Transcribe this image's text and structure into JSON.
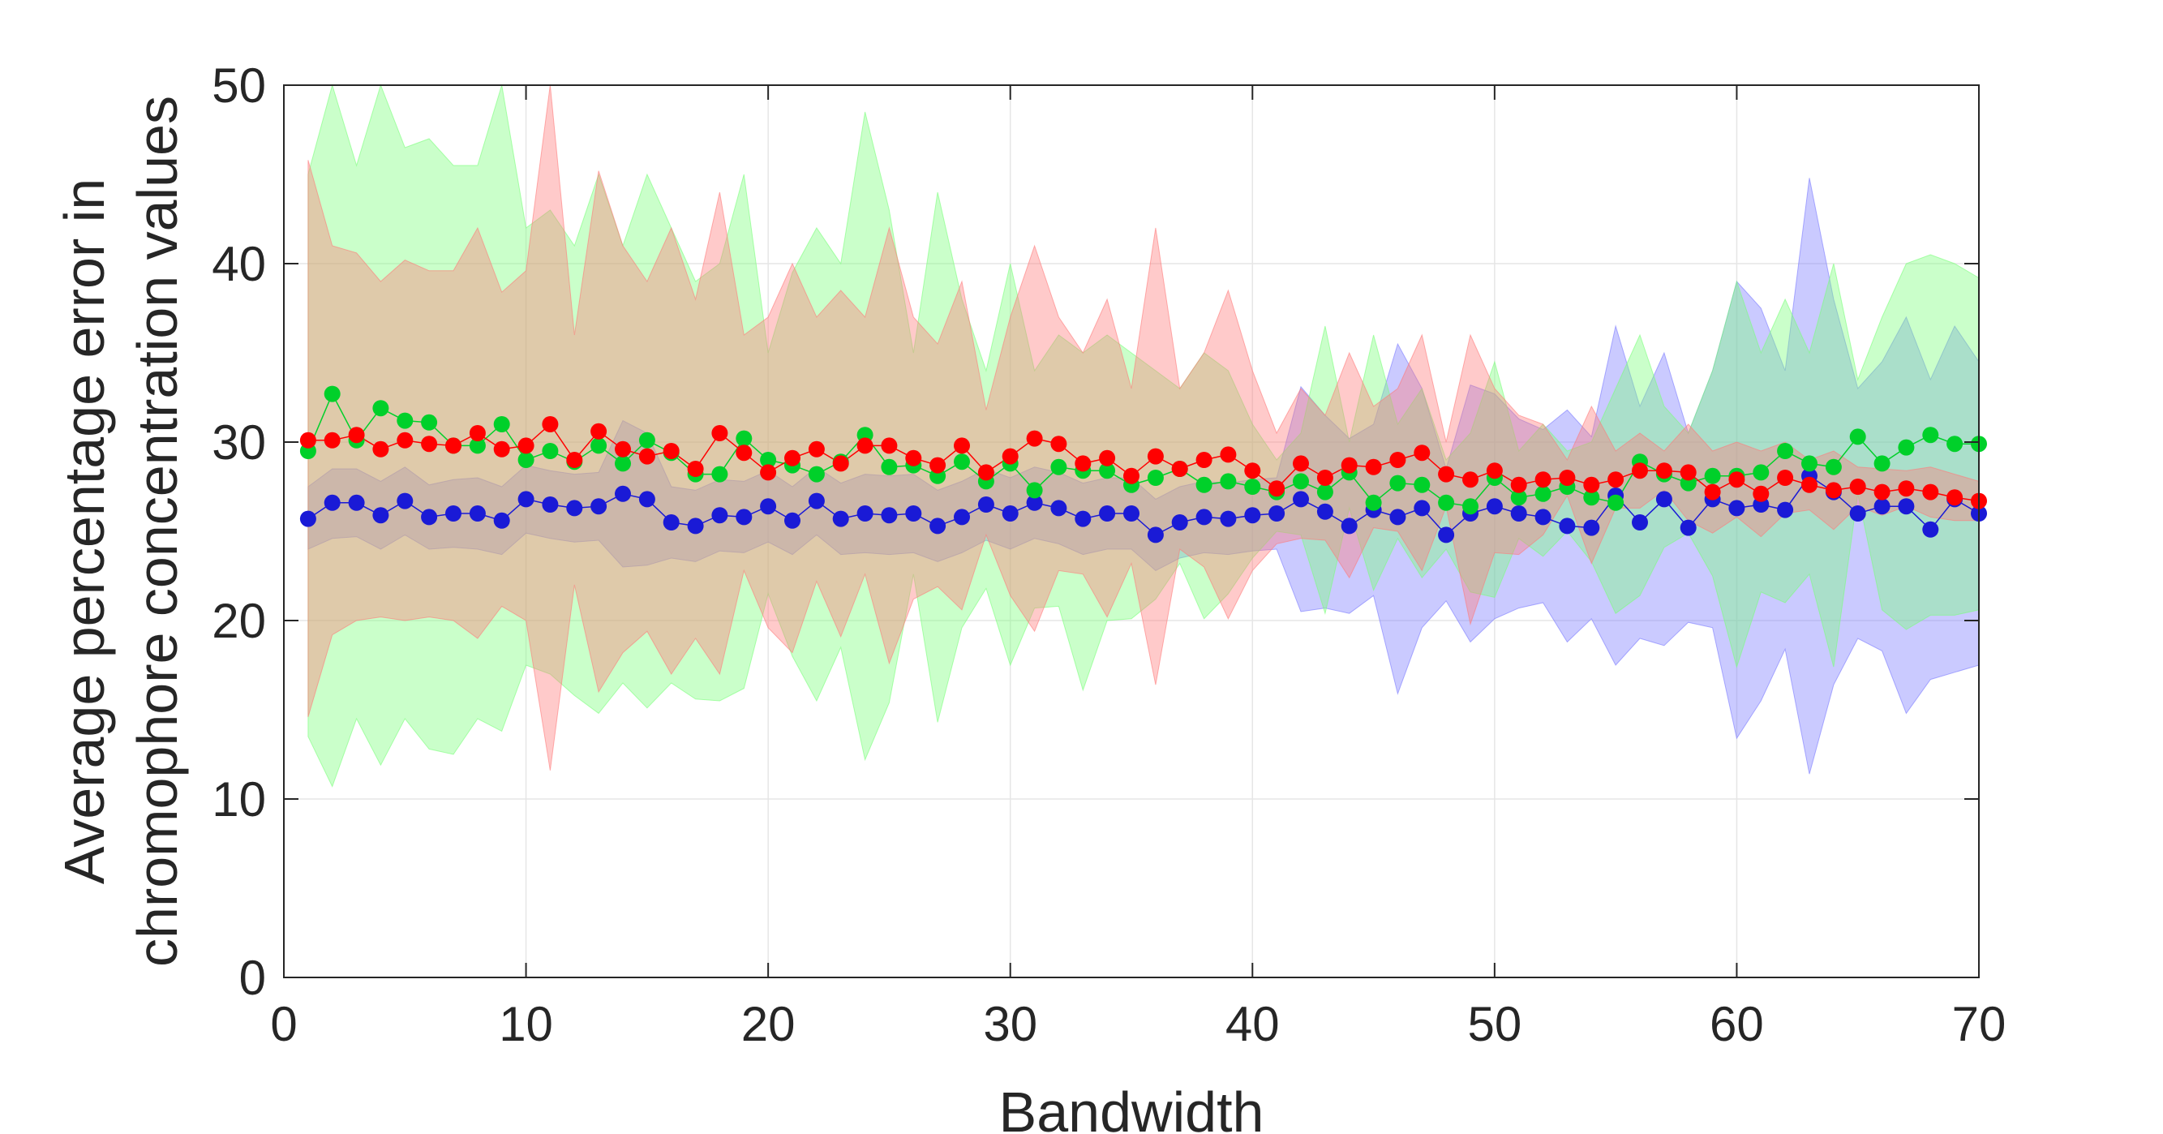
{
  "chart_data": {
    "type": "line",
    "title": "",
    "xlabel": "Bandwidth",
    "ylabel_lines": [
      "Average percentage error in",
      "chromophore concentration values"
    ],
    "xlim": [
      0,
      70
    ],
    "ylim": [
      0,
      50
    ],
    "xticks": [
      0,
      10,
      20,
      30,
      40,
      50,
      60,
      70
    ],
    "yticks": [
      0,
      10,
      20,
      30,
      40,
      50
    ],
    "xtick_labels": [
      "0",
      "10",
      "20",
      "30",
      "40",
      "50",
      "60",
      "70"
    ],
    "ytick_labels": [
      "0",
      "10",
      "20",
      "30",
      "40",
      "50"
    ],
    "grid": true,
    "legend": "none",
    "x": [
      1,
      2,
      3,
      4,
      5,
      6,
      7,
      8,
      9,
      10,
      11,
      12,
      13,
      14,
      15,
      16,
      17,
      18,
      19,
      20,
      21,
      22,
      23,
      24,
      25,
      26,
      27,
      28,
      29,
      30,
      31,
      32,
      33,
      34,
      35,
      36,
      37,
      38,
      39,
      40,
      41,
      42,
      43,
      44,
      45,
      46,
      47,
      48,
      49,
      50,
      51,
      52,
      53,
      54,
      55,
      56,
      57,
      58,
      59,
      60,
      61,
      62,
      63,
      64,
      65,
      66,
      67,
      68,
      69,
      70
    ],
    "series": [
      {
        "color": "#1a1ad6",
        "band_color": "#7a7aff",
        "values": [
          25.7,
          26.6,
          26.6,
          25.9,
          26.7,
          25.8,
          26.0,
          26.0,
          25.6,
          26.8,
          26.5,
          26.3,
          26.4,
          27.1,
          26.8,
          25.5,
          25.3,
          25.9,
          25.8,
          26.4,
          25.6,
          26.7,
          25.7,
          26.0,
          25.9,
          26.0,
          25.3,
          25.8,
          26.5,
          26.0,
          26.6,
          26.3,
          25.7,
          26.0,
          26.0,
          24.8,
          25.5,
          25.8,
          25.7,
          25.9,
          26.0,
          26.8,
          26.1,
          25.3,
          26.2,
          25.8,
          26.3,
          24.8,
          26.0,
          26.4,
          26.0,
          25.8,
          25.3,
          25.2,
          27.0,
          25.5,
          26.8,
          25.2,
          26.8,
          26.3,
          26.5,
          26.2,
          28.1,
          27.2,
          26.0,
          26.4,
          26.4,
          25.1,
          26.8,
          26.0
        ],
        "upper": [
          27.5,
          28.5,
          28.5,
          27.8,
          28.6,
          27.6,
          27.9,
          28.0,
          27.5,
          28.7,
          28.4,
          28.2,
          28.3,
          31.2,
          30.5,
          27.5,
          27.3,
          27.9,
          27.8,
          28.4,
          27.5,
          28.6,
          27.7,
          28.2,
          28.1,
          28.2,
          27.3,
          27.8,
          28.5,
          28.0,
          28.6,
          28.3,
          27.7,
          28.0,
          28.0,
          26.8,
          27.5,
          27.8,
          27.7,
          27.9,
          28.0,
          33.1,
          31.5,
          30.2,
          31.0,
          35.5,
          33.0,
          28.5,
          33.2,
          32.7,
          31.3,
          30.7,
          31.8,
          30.3,
          36.5,
          32.0,
          35.0,
          30.5,
          34.0,
          39.0,
          37.5,
          34.0,
          44.8,
          38.0,
          33.0,
          34.5,
          37.0,
          33.5,
          36.5,
          34.5
        ],
        "lower": [
          24.0,
          24.6,
          24.7,
          24.0,
          24.8,
          24.0,
          24.1,
          24.0,
          23.7,
          24.9,
          24.6,
          24.4,
          24.5,
          23.0,
          23.1,
          23.5,
          23.3,
          23.9,
          23.8,
          24.4,
          23.7,
          24.8,
          23.7,
          23.8,
          23.7,
          23.8,
          23.3,
          23.8,
          24.5,
          24.0,
          24.6,
          24.3,
          23.7,
          24.0,
          24.0,
          22.8,
          23.5,
          23.8,
          23.7,
          23.9,
          24.0,
          20.5,
          20.7,
          20.4,
          21.4,
          15.9,
          19.6,
          21.1,
          18.8,
          20.1,
          20.7,
          21.0,
          18.8,
          20.1,
          17.5,
          19.0,
          18.6,
          19.9,
          19.6,
          13.4,
          15.5,
          18.4,
          11.4,
          16.4,
          19.0,
          18.3,
          14.8,
          16.7,
          17.1,
          17.5
        ]
      },
      {
        "color": "#00d02a",
        "band_color": "#7aff7a",
        "values": [
          29.5,
          32.7,
          30.1,
          31.9,
          31.2,
          31.1,
          29.8,
          29.8,
          31.0,
          29.0,
          29.5,
          28.9,
          29.8,
          28.8,
          30.1,
          29.4,
          28.2,
          28.2,
          30.2,
          29.0,
          28.7,
          28.2,
          28.9,
          30.4,
          28.6,
          28.7,
          28.1,
          28.9,
          27.8,
          28.8,
          27.3,
          28.6,
          28.4,
          28.4,
          27.6,
          28.0,
          28.5,
          27.6,
          27.8,
          27.5,
          27.2,
          27.8,
          27.2,
          28.3,
          26.6,
          27.7,
          27.6,
          26.6,
          26.4,
          28.0,
          26.9,
          27.1,
          27.5,
          26.9,
          26.6,
          28.9,
          28.2,
          27.7,
          28.1,
          28.1,
          28.3,
          29.5,
          28.8,
          28.6,
          30.3,
          28.8,
          29.7,
          30.4,
          29.9,
          29.9
        ],
        "upper": [
          45.0,
          54.5,
          45.5,
          54.0,
          46.5,
          47.0,
          45.5,
          45.5,
          50.0,
          42.0,
          43.0,
          41.0,
          45.0,
          41.0,
          45.0,
          42.0,
          39.0,
          40.0,
          45.0,
          35.0,
          39.5,
          42.0,
          40.0,
          48.5,
          43.0,
          35.0,
          44.0,
          38.0,
          34.0,
          40.0,
          34.0,
          36.0,
          35.0,
          36.0,
          35.0,
          34.0,
          33.0,
          35.0,
          34.0,
          31.0,
          29.0,
          30.5,
          36.5,
          30.0,
          36.0,
          31.0,
          33.0,
          29.0,
          30.5,
          34.5,
          29.5,
          31.0,
          29.5,
          30.0,
          33.0,
          36.0,
          32.0,
          30.5,
          34.0,
          39.0,
          35.0,
          38.0,
          35.0,
          40.0,
          33.5,
          37.0,
          40.0,
          40.5,
          40.0,
          39.2
        ],
        "lower": [
          13.5,
          10.7,
          14.5,
          11.9,
          14.5,
          12.8,
          12.5,
          14.5,
          13.8,
          17.5,
          17.0,
          15.8,
          14.8,
          16.5,
          15.1,
          16.5,
          15.6,
          15.5,
          16.2,
          21.5,
          18.0,
          15.5,
          18.5,
          12.2,
          15.4,
          22.6,
          14.3,
          19.6,
          21.8,
          17.5,
          20.7,
          20.8,
          16.1,
          20.0,
          20.1,
          21.2,
          23.2,
          20.1,
          21.5,
          23.5,
          25.0,
          24.8,
          20.4,
          26.3,
          21.7,
          24.6,
          22.4,
          24.0,
          21.6,
          21.3,
          24.6,
          23.6,
          25.0,
          23.3,
          20.4,
          21.4,
          24.1,
          24.9,
          22.5,
          17.4,
          21.6,
          21.0,
          22.6,
          17.4,
          27.1,
          20.6,
          19.5,
          20.3,
          20.3,
          20.6
        ]
      },
      {
        "color": "#ff0000",
        "band_color": "#ff7a7a",
        "values": [
          30.1,
          30.1,
          30.4,
          29.6,
          30.1,
          29.9,
          29.8,
          30.5,
          29.6,
          29.8,
          31.0,
          29.0,
          30.6,
          29.6,
          29.2,
          29.5,
          28.5,
          30.5,
          29.4,
          28.3,
          29.1,
          29.6,
          28.8,
          29.8,
          29.8,
          29.1,
          28.7,
          29.8,
          28.3,
          29.2,
          30.2,
          29.9,
          28.8,
          29.1,
          28.1,
          29.2,
          28.5,
          29.0,
          29.3,
          28.4,
          27.4,
          28.8,
          28.0,
          28.7,
          28.6,
          29.0,
          29.4,
          28.2,
          27.9,
          28.4,
          27.6,
          27.9,
          28.0,
          27.6,
          27.9,
          28.4,
          28.4,
          28.3,
          27.2,
          27.9,
          27.1,
          28.0,
          27.6,
          27.3,
          27.5,
          27.2,
          27.4,
          27.2,
          26.9,
          26.7
        ],
        "upper": [
          45.8,
          41.0,
          40.6,
          39.0,
          40.2,
          39.6,
          39.6,
          42.0,
          38.4,
          39.6,
          50.2,
          36.0,
          45.2,
          41.0,
          39.0,
          42.0,
          38.0,
          44.0,
          36.0,
          37.0,
          40.0,
          37.0,
          38.5,
          37.0,
          42.0,
          37.0,
          35.5,
          39.0,
          31.8,
          37.0,
          41.0,
          37.0,
          35.0,
          38.0,
          33.0,
          42.0,
          33.0,
          35.0,
          38.5,
          34.0,
          30.5,
          33.0,
          31.5,
          35.0,
          32.0,
          33.0,
          36.0,
          30.0,
          36.0,
          33.0,
          31.5,
          31.0,
          29.0,
          32.0,
          29.5,
          30.5,
          29.5,
          31.0,
          29.5,
          30.0,
          29.5,
          30.0,
          29.0,
          29.5,
          28.6,
          28.5,
          28.4,
          28.6,
          28.2,
          27.8
        ],
        "lower": [
          14.6,
          19.2,
          20.0,
          20.2,
          20.0,
          20.2,
          20.0,
          19.0,
          20.8,
          20.0,
          11.6,
          22.0,
          16.0,
          18.2,
          19.4,
          17.0,
          19.0,
          17.0,
          22.8,
          19.6,
          18.2,
          22.2,
          19.1,
          22.6,
          17.6,
          21.2,
          21.9,
          20.6,
          24.8,
          21.4,
          19.4,
          22.8,
          22.6,
          20.2,
          23.2,
          16.4,
          24.0,
          23.0,
          20.1,
          22.8,
          24.3,
          24.6,
          24.5,
          22.4,
          25.2,
          25.0,
          22.8,
          26.4,
          19.8,
          23.8,
          23.7,
          24.8,
          27.0,
          23.2,
          26.3,
          26.3,
          27.3,
          25.6,
          24.9,
          25.8,
          24.7,
          26.0,
          26.2,
          25.1,
          26.4,
          25.9,
          26.4,
          25.8,
          25.6,
          25.6
        ]
      }
    ]
  }
}
